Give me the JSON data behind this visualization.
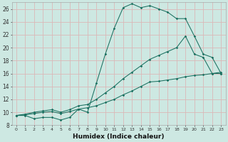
{
  "xlabel": "Humidex (Indice chaleur)",
  "background_color": "#cde8e2",
  "grid_color": "#dbb8b8",
  "line_color": "#1a7060",
  "xlim": [
    -0.5,
    23.5
  ],
  "ylim": [
    8,
    27
  ],
  "xticks": [
    0,
    1,
    2,
    3,
    4,
    5,
    6,
    7,
    8,
    9,
    10,
    11,
    12,
    13,
    14,
    15,
    16,
    17,
    18,
    19,
    20,
    21,
    22,
    23
  ],
  "yticks": [
    8,
    10,
    12,
    14,
    16,
    18,
    20,
    22,
    24,
    26
  ],
  "line1_x": [
    0,
    1,
    2,
    3,
    4,
    5,
    6,
    7,
    8,
    9,
    10,
    11,
    12,
    13,
    14,
    15,
    16,
    17,
    18,
    19,
    20,
    21,
    22,
    23
  ],
  "line1_y": [
    9.5,
    9.5,
    9.0,
    9.2,
    9.2,
    8.8,
    9.2,
    10.5,
    10.0,
    14.5,
    19.0,
    23.0,
    26.2,
    26.8,
    26.2,
    26.5,
    26.0,
    25.5,
    24.5,
    24.5,
    21.8,
    19.0,
    18.5,
    16.0
  ],
  "line2_x": [
    0,
    1,
    2,
    3,
    4,
    5,
    6,
    7,
    8,
    9,
    10,
    11,
    12,
    13,
    14,
    15,
    16,
    17,
    18,
    19,
    20,
    21,
    22,
    23
  ],
  "line2_y": [
    9.5,
    9.7,
    10.0,
    10.2,
    10.4,
    10.0,
    10.4,
    11.0,
    11.2,
    12.0,
    13.0,
    14.0,
    15.2,
    16.2,
    17.2,
    18.2,
    18.8,
    19.4,
    20.0,
    21.8,
    19.0,
    18.5,
    16.0,
    16.0
  ],
  "line3_x": [
    0,
    1,
    2,
    3,
    4,
    5,
    6,
    7,
    8,
    9,
    10,
    11,
    12,
    13,
    14,
    15,
    16,
    17,
    18,
    19,
    20,
    21,
    22,
    23
  ],
  "line3_y": [
    9.5,
    9.6,
    9.8,
    10.0,
    10.1,
    9.8,
    10.1,
    10.5,
    10.7,
    11.0,
    11.5,
    12.0,
    12.7,
    13.3,
    14.0,
    14.7,
    14.8,
    15.0,
    15.2,
    15.5,
    15.7,
    15.8,
    16.0,
    16.2
  ]
}
